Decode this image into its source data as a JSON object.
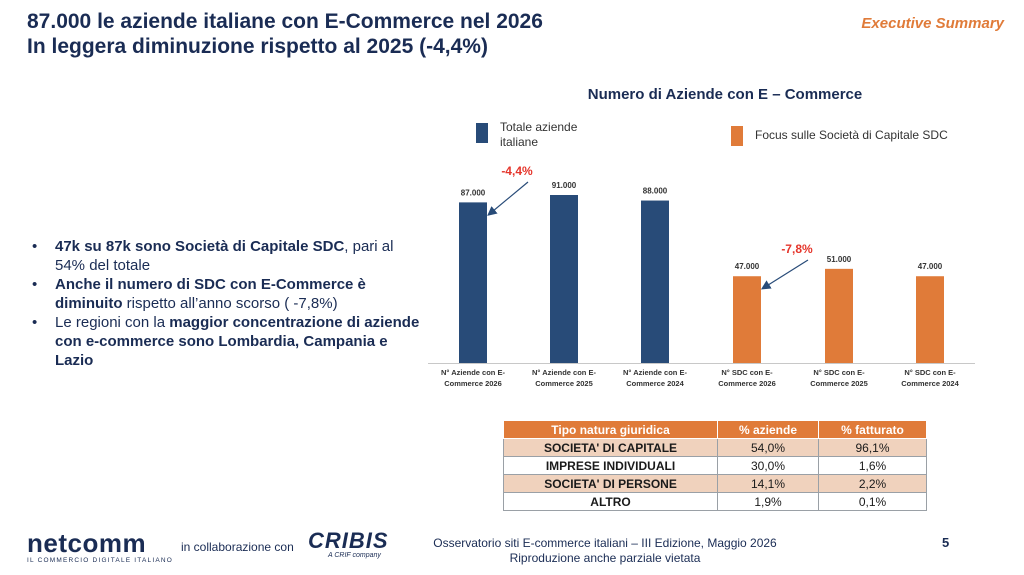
{
  "header": {
    "title_line1": "87.000 le aziende italiane con E-Commerce nel 2026",
    "title_line2": "In leggera diminuzione rispetto al 2025 (-4,4%)",
    "section_label": "Executive Summary"
  },
  "chart_data": {
    "type": "bar",
    "title": "Numero di Aziende con E – Commerce",
    "categories": [
      "N° Aziende con E-Commerce 2026",
      "N° Aziende con E-Commerce 2025",
      "N° Aziende con E-Commerce 2024",
      "N° SDC con E-Commerce 2026",
      "N° SDC con E-Commerce 2025",
      "N° SDC con E-Commerce 2024"
    ],
    "category_lines": [
      [
        "N° Aziende con E-",
        "Commerce 2026"
      ],
      [
        "N° Aziende con E-",
        "Commerce 2025"
      ],
      [
        "N° Aziende con E-",
        "Commerce 2024"
      ],
      [
        "N° SDC con E-",
        "Commerce 2026"
      ],
      [
        "N° SDC con E-",
        "Commerce 2025"
      ],
      [
        "N° SDC con E-",
        "Commerce 2024"
      ]
    ],
    "values": [
      87000,
      91000,
      88000,
      47000,
      51000,
      47000
    ],
    "value_labels": [
      "87.000",
      "91.000",
      "88.000",
      "47.000",
      "51.000",
      "47.000"
    ],
    "bar_series": [
      0,
      0,
      0,
      1,
      1,
      1
    ],
    "legend": [
      {
        "name_lines": [
          "Totale aziende",
          "italiane"
        ],
        "color": "#284b78"
      },
      {
        "name_lines": [
          "Focus sulle Società di Capitale SDC"
        ],
        "color": "#e07b39"
      }
    ],
    "annotations": [
      {
        "text": "-4,4%",
        "color": "#e5352b",
        "target_bar": 0
      },
      {
        "text": "-7,8%",
        "color": "#e5352b",
        "target_bar": 3
      }
    ],
    "ylim": [
      0,
      100000
    ],
    "grid": false,
    "legend_position": "top"
  },
  "bullets": [
    {
      "parts": [
        {
          "text": "47k su 87k sono Società di Capitale SDC",
          "bold": true
        },
        {
          "text": ", pari al 54% del totale",
          "bold": false
        }
      ]
    },
    {
      "parts": [
        {
          "text": "Anche il numero di SDC con E-Commerce è diminuito",
          "bold": true
        },
        {
          "text": " rispetto all’anno scorso ( -7,8%)",
          "bold": false
        }
      ]
    },
    {
      "parts": [
        {
          "text": "Le regioni con la ",
          "bold": false
        },
        {
          "text": "maggior concentrazione di aziende con e-commerce sono Lombardia, Campania e Lazio",
          "bold": true
        }
      ]
    }
  ],
  "table": {
    "headers": [
      "Tipo natura giuridica",
      "% aziende",
      "% fatturato"
    ],
    "rows": [
      [
        "SOCIETA' DI CAPITALE",
        "54,0%",
        "96,1%"
      ],
      [
        "IMPRESE INDIVIDUALI",
        "30,0%",
        "1,6%"
      ],
      [
        "SOCIETA' DI PERSONE",
        "14,1%",
        "2,2%"
      ],
      [
        "ALTRO",
        "1,9%",
        "0,1%"
      ]
    ]
  },
  "footer": {
    "logo_text": "netcomm",
    "logo_sub": "IL COMMERCIO DIGITALE ITALIANO",
    "collab": "in collaborazione con",
    "partner_logo": "CRIBIS",
    "partner_sub": "A CRIF company",
    "line1": "Osservatorio siti E-commerce italiani – III Edizione, Maggio 2026",
    "line2": "Riproduzione anche parziale vietata",
    "page": "5"
  },
  "colors": {
    "navy": "#1a2c54",
    "blue_bar": "#284b78",
    "orange": "#e07b39",
    "red_annotation": "#e5352b"
  }
}
